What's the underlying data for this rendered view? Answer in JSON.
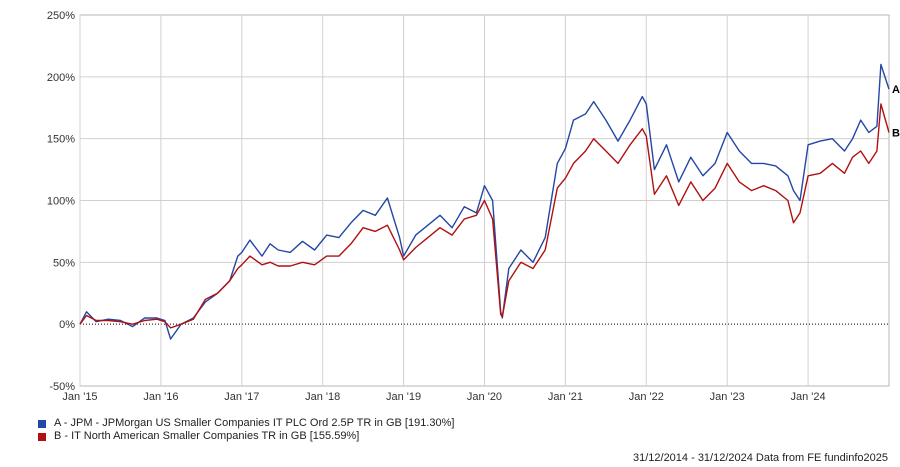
{
  "chart_data": {
    "type": "line",
    "y_tick_labels": [
      "250%",
      "200%",
      "150%",
      "100%",
      "50%",
      "0%",
      "-50%"
    ],
    "y_ticks": [
      250,
      200,
      150,
      100,
      50,
      0,
      -50
    ],
    "ylim": [
      -50,
      250
    ],
    "x_tick_labels": [
      "Jan '15",
      "Jan '16",
      "Jan '17",
      "Jan '18",
      "Jan '19",
      "Jan '20",
      "Jan '21",
      "Jan '22",
      "Jan '23",
      "Jan '24"
    ],
    "x_ticks": [
      2015.0,
      2016.0,
      2017.0,
      2018.0,
      2019.0,
      2020.0,
      2021.0,
      2022.0,
      2023.0,
      2024.0
    ],
    "xlim": [
      2015.0,
      2025.0
    ],
    "grid": true,
    "zero_line": true,
    "series": [
      {
        "name": "A - JPM - JPMorgan US Smaller Companies IT PLC Ord 2.5P TR in GB [191.30%]",
        "end_label": "A",
        "color": "#2447a5",
        "x": [
          2015.0,
          2015.08,
          2015.2,
          2015.35,
          2015.5,
          2015.65,
          2015.8,
          2015.95,
          2016.05,
          2016.12,
          2016.25,
          2016.4,
          2016.55,
          2016.7,
          2016.85,
          2016.95,
          2017.0,
          2017.1,
          2017.25,
          2017.35,
          2017.45,
          2017.6,
          2017.75,
          2017.9,
          2018.05,
          2018.2,
          2018.35,
          2018.5,
          2018.65,
          2018.8,
          2018.95,
          2019.0,
          2019.15,
          2019.3,
          2019.45,
          2019.6,
          2019.75,
          2019.9,
          2020.0,
          2020.1,
          2020.2,
          2020.22,
          2020.3,
          2020.45,
          2020.6,
          2020.75,
          2020.9,
          2021.0,
          2021.1,
          2021.25,
          2021.35,
          2021.5,
          2021.65,
          2021.8,
          2021.95,
          2022.0,
          2022.1,
          2022.25,
          2022.4,
          2022.55,
          2022.7,
          2022.85,
          2023.0,
          2023.15,
          2023.3,
          2023.45,
          2023.6,
          2023.75,
          2023.82,
          2023.9,
          2024.0,
          2024.15,
          2024.3,
          2024.45,
          2024.55,
          2024.65,
          2024.75,
          2024.85,
          2024.9,
          2025.0
        ],
        "values": [
          0,
          10,
          2,
          4,
          3,
          -2,
          5,
          5,
          3,
          -12,
          0,
          5,
          18,
          25,
          35,
          55,
          58,
          68,
          55,
          65,
          60,
          58,
          67,
          60,
          72,
          70,
          82,
          92,
          88,
          102,
          70,
          55,
          72,
          80,
          88,
          78,
          95,
          90,
          112,
          100,
          10,
          5,
          45,
          60,
          50,
          70,
          130,
          142,
          165,
          170,
          180,
          165,
          148,
          165,
          184,
          178,
          125,
          145,
          115,
          135,
          120,
          130,
          155,
          140,
          130,
          130,
          128,
          120,
          108,
          100,
          145,
          148,
          150,
          140,
          150,
          165,
          155,
          160,
          210,
          190
        ]
      },
      {
        "name": "B - IT North American Smaller Companies TR in GB [155.59%]",
        "end_label": "B",
        "color": "#b01010",
        "x": [
          2015.0,
          2015.08,
          2015.2,
          2015.35,
          2015.5,
          2015.65,
          2015.8,
          2015.95,
          2016.05,
          2016.12,
          2016.25,
          2016.4,
          2016.55,
          2016.7,
          2016.85,
          2016.95,
          2017.0,
          2017.1,
          2017.25,
          2017.35,
          2017.45,
          2017.6,
          2017.75,
          2017.9,
          2018.05,
          2018.2,
          2018.35,
          2018.5,
          2018.65,
          2018.8,
          2018.95,
          2019.0,
          2019.15,
          2019.3,
          2019.45,
          2019.6,
          2019.75,
          2019.9,
          2020.0,
          2020.1,
          2020.2,
          2020.22,
          2020.3,
          2020.45,
          2020.6,
          2020.75,
          2020.9,
          2021.0,
          2021.1,
          2021.25,
          2021.35,
          2021.5,
          2021.65,
          2021.8,
          2021.95,
          2022.0,
          2022.1,
          2022.25,
          2022.4,
          2022.55,
          2022.7,
          2022.85,
          2023.0,
          2023.15,
          2023.3,
          2023.45,
          2023.6,
          2023.75,
          2023.82,
          2023.9,
          2024.0,
          2024.15,
          2024.3,
          2024.45,
          2024.55,
          2024.65,
          2024.75,
          2024.85,
          2024.9,
          2025.0
        ],
        "values": [
          0,
          7,
          3,
          3,
          2,
          0,
          3,
          4,
          2,
          -3,
          0,
          4,
          20,
          25,
          35,
          45,
          48,
          55,
          48,
          50,
          47,
          47,
          50,
          48,
          55,
          55,
          65,
          78,
          75,
          80,
          60,
          52,
          62,
          70,
          78,
          72,
          85,
          88,
          100,
          85,
          8,
          6,
          35,
          50,
          45,
          60,
          110,
          118,
          130,
          140,
          150,
          140,
          130,
          145,
          158,
          152,
          105,
          120,
          96,
          115,
          100,
          110,
          130,
          115,
          108,
          112,
          108,
          100,
          82,
          90,
          120,
          122,
          130,
          122,
          135,
          140,
          130,
          140,
          178,
          155
        ]
      }
    ],
    "footer": "31/12/2014 - 31/12/2024 Data from FE fundinfo2025"
  }
}
